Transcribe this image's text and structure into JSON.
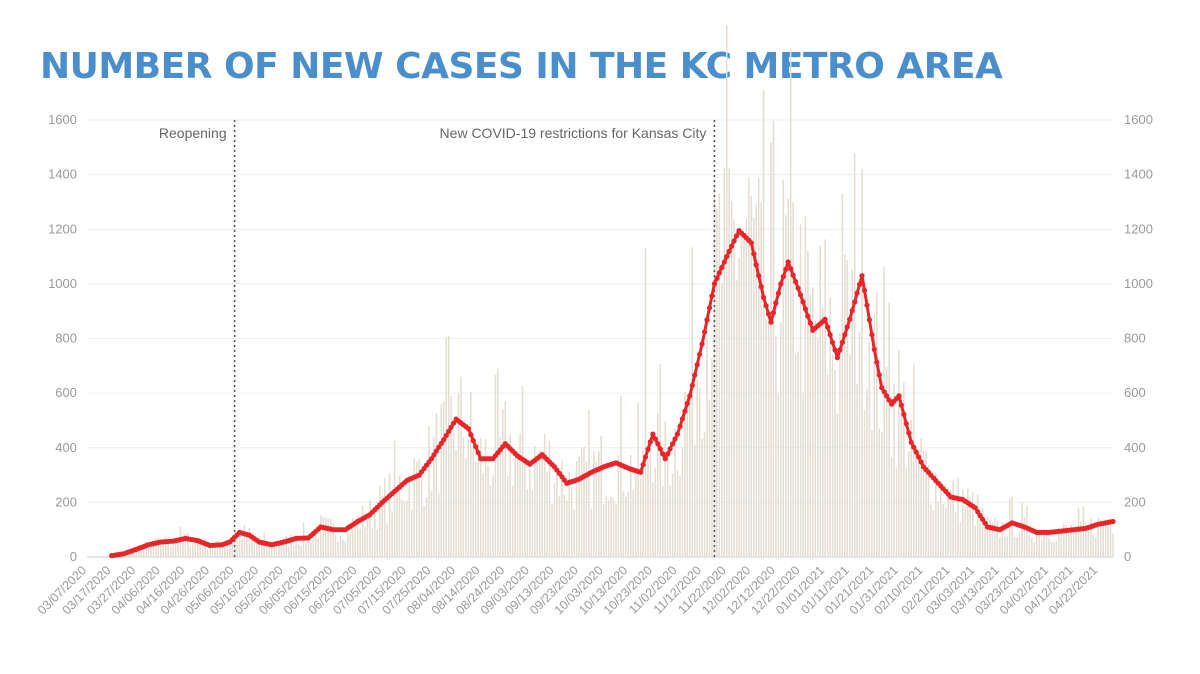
{
  "title": "NUMBER OF NEW CASES IN THE KC METRO AREA",
  "chart_data": {
    "type": "bar",
    "overlay": "line (rolling average)",
    "title": "NUMBER OF NEW CASES IN THE KC METRO AREA",
    "ylim": [
      0,
      1600
    ],
    "yticks": [
      0,
      200,
      400,
      600,
      800,
      1000,
      1200,
      1400,
      1600
    ],
    "y_axis_both_sides": true,
    "grid": true,
    "x_range": [
      "03/07/2020",
      "04/28/2021"
    ],
    "x_tick_labels": [
      "03/07/2020",
      "03/17/2020",
      "03/27/2020",
      "04/06/2020",
      "04/16/2020",
      "04/26/2020",
      "05/06/2020",
      "05/16/2020",
      "05/26/2020",
      "06/05/2020",
      "06/15/2020",
      "06/25/2020",
      "07/05/2020",
      "07/15/2020",
      "07/25/2020",
      "08/04/2020",
      "08/14/2020",
      "08/24/2020",
      "09/03/2020",
      "09/13/2020",
      "09/23/2020",
      "10/03/2020",
      "10/13/2020",
      "10/23/2020",
      "11/02/2020",
      "11/12/2020",
      "11/22/2020",
      "12/02/2020",
      "12/12/2020",
      "12/22/2020",
      "01/01/2021",
      "01/11/2021",
      "01/21/2021",
      "01/31/2021",
      "02/10/2021",
      "02/21/2021",
      "03/03/2021",
      "03/13/2021",
      "03/23/2021",
      "04/02/2021",
      "04/12/2021",
      "04/22/2021"
    ],
    "annotations": [
      {
        "date": "05/06/2020",
        "label": "Reopening",
        "label_side": "left"
      },
      {
        "date": "11/17/2020",
        "label": "New COVID-19 restrictions for Kansas City",
        "label_side": "left"
      }
    ],
    "series_line": {
      "color": "#e8262a",
      "points": [
        [
          "03/17/2020",
          5
        ],
        [
          "03/22/2020",
          12
        ],
        [
          "03/27/2020",
          28
        ],
        [
          "04/01/2020",
          45
        ],
        [
          "04/06/2020",
          55
        ],
        [
          "04/11/2020",
          58
        ],
        [
          "04/16/2020",
          68
        ],
        [
          "04/21/2020",
          60
        ],
        [
          "04/26/2020",
          42
        ],
        [
          "05/01/2020",
          45
        ],
        [
          "05/04/2020",
          55
        ],
        [
          "05/08/2020",
          90
        ],
        [
          "05/12/2020",
          80
        ],
        [
          "05/16/2020",
          55
        ],
        [
          "05/21/2020",
          45
        ],
        [
          "05/26/2020",
          55
        ],
        [
          "05/31/2020",
          68
        ],
        [
          "06/05/2020",
          70
        ],
        [
          "06/10/2020",
          110
        ],
        [
          "06/15/2020",
          100
        ],
        [
          "06/20/2020",
          100
        ],
        [
          "06/25/2020",
          130
        ],
        [
          "06/30/2020",
          155
        ],
        [
          "07/05/2020",
          200
        ],
        [
          "07/10/2020",
          240
        ],
        [
          "07/15/2020",
          280
        ],
        [
          "07/20/2020",
          300
        ],
        [
          "07/25/2020",
          360
        ],
        [
          "07/30/2020",
          430
        ],
        [
          "08/04/2020",
          505
        ],
        [
          "08/09/2020",
          470
        ],
        [
          "08/14/2020",
          360
        ],
        [
          "08/19/2020",
          360
        ],
        [
          "08/24/2020",
          415
        ],
        [
          "08/29/2020",
          370
        ],
        [
          "09/03/2020",
          340
        ],
        [
          "09/08/2020",
          375
        ],
        [
          "09/13/2020",
          330
        ],
        [
          "09/18/2020",
          270
        ],
        [
          "09/23/2020",
          285
        ],
        [
          "09/28/2020",
          310
        ],
        [
          "10/03/2020",
          330
        ],
        [
          "10/08/2020",
          345
        ],
        [
          "10/13/2020",
          325
        ],
        [
          "10/18/2020",
          310
        ],
        [
          "10/23/2020",
          450
        ],
        [
          "10/28/2020",
          360
        ],
        [
          "11/02/2020",
          450
        ],
        [
          "11/07/2020",
          590
        ],
        [
          "11/12/2020",
          780
        ],
        [
          "11/17/2020",
          1000
        ],
        [
          "11/22/2020",
          1100
        ],
        [
          "11/27/2020",
          1195
        ],
        [
          "12/02/2020",
          1150
        ],
        [
          "12/07/2020",
          950
        ],
        [
          "12/10/2020",
          860
        ],
        [
          "12/14/2020",
          1000
        ],
        [
          "12/17/2020",
          1080
        ],
        [
          "12/22/2020",
          960
        ],
        [
          "12/27/2020",
          830
        ],
        [
          "01/01/2021",
          870
        ],
        [
          "01/06/2021",
          730
        ],
        [
          "01/11/2021",
          870
        ],
        [
          "01/16/2021",
          1030
        ],
        [
          "01/21/2021",
          760
        ],
        [
          "01/24/2021",
          620
        ],
        [
          "01/28/2021",
          560
        ],
        [
          "01/31/2021",
          590
        ],
        [
          "02/05/2021",
          420
        ],
        [
          "02/10/2021",
          330
        ],
        [
          "02/15/2021",
          280
        ],
        [
          "02/21/2021",
          220
        ],
        [
          "02/26/2021",
          210
        ],
        [
          "03/03/2021",
          180
        ],
        [
          "03/08/2021",
          110
        ],
        [
          "03/13/2021",
          100
        ],
        [
          "03/18/2021",
          125
        ],
        [
          "03/23/2021",
          110
        ],
        [
          "03/28/2021",
          90
        ],
        [
          "04/02/2021",
          90
        ],
        [
          "04/07/2021",
          95
        ],
        [
          "04/12/2021",
          100
        ],
        [
          "04/17/2021",
          105
        ],
        [
          "04/22/2021",
          120
        ],
        [
          "04/28/2021",
          130
        ]
      ]
    },
    "series_bars": {
      "color": "#e3ddd2",
      "description": "daily new cases (bars, noisy around the line)",
      "notable_spikes": [
        [
          "10/20/2020",
          1130
        ],
        [
          "11/19/2020",
          1330
        ],
        [
          "01/08/2021",
          1330
        ],
        [
          "01/13/2021",
          1480
        ],
        [
          "01/27/2021",
          930
        ]
      ]
    }
  }
}
